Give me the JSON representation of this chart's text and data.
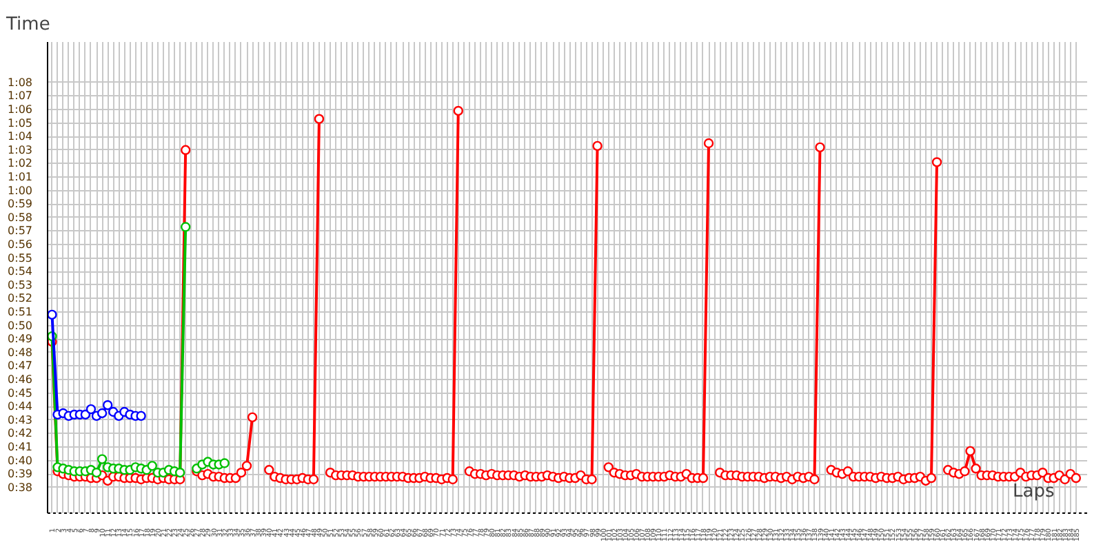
{
  "chart_data": {
    "type": "line",
    "xlabel": "Laps",
    "ylabel": "Time",
    "marker": "circle",
    "line_style": "solid",
    "grid": true,
    "categories": [
      "1",
      "2",
      "3",
      "4",
      "5",
      "6",
      "7",
      "8",
      "9",
      "10",
      "11",
      "12",
      "13",
      "14",
      "15",
      "16",
      "17",
      "18",
      "19",
      "20",
      "21",
      "22",
      "23",
      "24",
      "25",
      "26",
      "27",
      "28",
      "29",
      "30",
      "31",
      "32",
      "33",
      "34",
      "35",
      "36",
      "37",
      "38",
      "39",
      "40",
      "41",
      "42",
      "43",
      "44",
      "45",
      "46",
      "47",
      "48",
      "49",
      "50",
      "51",
      "52",
      "53",
      "54",
      "55",
      "56",
      "57",
      "58",
      "59",
      "60",
      "61",
      "62",
      "63",
      "64",
      "65",
      "66",
      "67",
      "68",
      "69",
      "70",
      "71",
      "72",
      "73",
      "74",
      "75",
      "76",
      "77",
      "78",
      "79",
      "80",
      "81",
      "82",
      "83",
      "84",
      "85",
      "86",
      "87",
      "88",
      "89",
      "90",
      "91",
      "92",
      "93",
      "94",
      "95",
      "96",
      "97",
      "98",
      "99",
      "100",
      "101",
      "102",
      "103",
      "104",
      "105",
      "106",
      "107",
      "108",
      "109",
      "110",
      "111",
      "112",
      "113",
      "114",
      "115",
      "116",
      "117",
      "118",
      "119",
      "120",
      "121",
      "122",
      "123",
      "124",
      "125",
      "126",
      "127",
      "128",
      "129",
      "130",
      "131",
      "132",
      "133",
      "134",
      "135",
      "136",
      "137",
      "138",
      "139",
      "140",
      "141",
      "142",
      "143",
      "144",
      "145",
      "146",
      "147",
      "148",
      "149",
      "150",
      "151",
      "152",
      "153",
      "154",
      "155",
      "156",
      "157",
      "158",
      "159",
      "160",
      "161",
      "162",
      "163",
      "164",
      "165",
      "166",
      "167",
      "168",
      "169",
      "170",
      "171",
      "172",
      "173",
      "174",
      "175",
      "176",
      "177",
      "178",
      "179",
      "180",
      "181",
      "182",
      "183",
      "184",
      "185"
    ],
    "ylim": [
      36.1,
      71
    ],
    "yticks": [
      {
        "value": 38,
        "label": "0:38"
      },
      {
        "value": 39,
        "label": "0:39"
      },
      {
        "value": 40,
        "label": "0:40"
      },
      {
        "value": 41,
        "label": "0:41"
      },
      {
        "value": 42,
        "label": "0:42"
      },
      {
        "value": 43,
        "label": "0:43"
      },
      {
        "value": 44,
        "label": "0:44"
      },
      {
        "value": 45,
        "label": "0:45"
      },
      {
        "value": 46,
        "label": "0:46"
      },
      {
        "value": 47,
        "label": "0:47"
      },
      {
        "value": 48,
        "label": "0:48"
      },
      {
        "value": 49,
        "label": "0:49"
      },
      {
        "value": 50,
        "label": "0:50"
      },
      {
        "value": 51,
        "label": "0:51"
      },
      {
        "value": 52,
        "label": "0:52"
      },
      {
        "value": 53,
        "label": "0:53"
      },
      {
        "value": 54,
        "label": "0:54"
      },
      {
        "value": 55,
        "label": "0:55"
      },
      {
        "value": 56,
        "label": "0:56"
      },
      {
        "value": 57,
        "label": "0:57"
      },
      {
        "value": 58,
        "label": "0:58"
      },
      {
        "value": 59,
        "label": "0:59"
      },
      {
        "value": 60,
        "label": "1:00"
      },
      {
        "value": 61,
        "label": "1:01"
      },
      {
        "value": 62,
        "label": "1:02"
      },
      {
        "value": 63,
        "label": "1:03"
      },
      {
        "value": 64,
        "label": "1:04"
      },
      {
        "value": 65,
        "label": "1:05"
      },
      {
        "value": 66,
        "label": "1:06"
      },
      {
        "value": 67,
        "label": "1:07"
      },
      {
        "value": 68,
        "label": "1:08"
      }
    ],
    "series": [
      {
        "color": "#ff0000",
        "values": [
          48.8,
          39.2,
          39.0,
          38.9,
          38.8,
          38.8,
          38.8,
          38.7,
          38.7,
          38.9,
          38.5,
          38.8,
          38.8,
          38.7,
          38.7,
          38.7,
          38.6,
          38.7,
          38.7,
          38.6,
          38.7,
          38.6,
          38.6,
          38.6,
          63.0,
          null,
          39.2,
          38.9,
          39.0,
          38.8,
          38.8,
          38.7,
          38.7,
          38.7,
          39.1,
          39.6,
          43.2,
          null,
          null,
          39.3,
          38.8,
          38.7,
          38.6,
          38.6,
          38.6,
          38.7,
          38.6,
          38.6,
          65.3,
          null,
          39.1,
          38.9,
          38.9,
          38.9,
          38.9,
          38.8,
          38.8,
          38.8,
          38.8,
          38.8,
          38.8,
          38.8,
          38.8,
          38.8,
          38.7,
          38.7,
          38.7,
          38.8,
          38.7,
          38.7,
          38.6,
          38.7,
          38.6,
          65.9,
          null,
          39.2,
          39.0,
          39.0,
          38.9,
          39.0,
          38.9,
          38.9,
          38.9,
          38.9,
          38.8,
          38.9,
          38.8,
          38.8,
          38.8,
          38.9,
          38.8,
          38.7,
          38.8,
          38.7,
          38.7,
          38.9,
          38.6,
          38.6,
          63.3,
          null,
          39.5,
          39.1,
          39.0,
          38.9,
          38.9,
          39.0,
          38.8,
          38.8,
          38.8,
          38.8,
          38.8,
          38.9,
          38.8,
          38.8,
          39.0,
          38.7,
          38.7,
          38.7,
          63.5,
          null,
          39.1,
          38.9,
          38.9,
          38.9,
          38.8,
          38.8,
          38.8,
          38.8,
          38.7,
          38.8,
          38.8,
          38.7,
          38.8,
          38.6,
          38.8,
          38.7,
          38.8,
          38.6,
          63.2,
          null,
          39.3,
          39.1,
          39.0,
          39.2,
          38.8,
          38.8,
          38.8,
          38.8,
          38.7,
          38.8,
          38.7,
          38.7,
          38.8,
          38.6,
          38.7,
          38.7,
          38.8,
          38.5,
          38.7,
          62.1,
          null,
          39.3,
          39.1,
          39.0,
          39.2,
          40.7,
          39.4,
          38.9,
          38.9,
          38.9,
          38.8,
          38.8,
          38.8,
          38.8,
          39.1,
          38.8,
          38.9,
          38.9,
          39.1,
          38.7,
          38.7,
          38.9,
          38.6,
          39.0,
          38.7
        ]
      },
      {
        "color": "#00c000",
        "values": [
          49.2,
          39.5,
          39.4,
          39.3,
          39.2,
          39.2,
          39.2,
          39.3,
          39.1,
          40.1,
          39.5,
          39.4,
          39.4,
          39.3,
          39.3,
          39.5,
          39.4,
          39.3,
          39.6,
          39.1,
          39.1,
          39.3,
          39.2,
          39.1,
          57.3,
          null,
          39.4,
          39.7,
          39.9,
          39.7,
          39.7,
          39.8,
          null,
          null,
          null,
          null,
          null,
          null,
          null,
          null,
          null,
          null,
          null,
          null,
          null,
          null,
          null,
          null,
          null,
          null,
          null,
          null,
          null,
          null,
          null,
          null,
          null,
          null,
          null,
          null,
          null,
          null,
          null,
          null,
          null,
          null,
          null,
          null,
          null,
          null,
          null,
          null,
          null,
          null,
          null,
          null,
          null,
          null,
          null,
          null,
          null,
          null,
          null,
          null,
          null,
          null,
          null,
          null,
          null,
          null,
          null,
          null,
          null,
          null,
          null,
          null,
          null,
          null,
          null,
          null,
          null,
          null,
          null,
          null,
          null,
          null,
          null,
          null,
          null,
          null,
          null,
          null,
          null,
          null,
          null,
          null,
          null,
          null,
          null,
          null,
          null,
          null,
          null,
          null,
          null,
          null,
          null,
          null,
          null,
          null,
          null,
          null,
          null,
          null,
          null,
          null,
          null,
          null,
          null,
          null,
          null,
          null,
          null,
          null,
          null,
          null,
          null,
          null,
          null,
          null,
          null,
          null,
          null,
          null,
          null,
          null,
          null,
          null,
          null,
          null,
          null,
          null,
          null,
          null,
          null,
          null,
          null,
          null,
          null,
          null,
          null,
          null,
          null,
          null,
          null,
          null,
          null,
          null,
          null,
          null,
          null,
          null,
          null,
          null,
          null
        ]
      },
      {
        "color": "#0000ff",
        "values": [
          50.8,
          43.4,
          43.5,
          43.3,
          43.4,
          43.4,
          43.4,
          43.8,
          43.3,
          43.5,
          44.1,
          43.6,
          43.3,
          43.6,
          43.4,
          43.3,
          43.3,
          null,
          null,
          null,
          null,
          null,
          null,
          null,
          null,
          null,
          null,
          null,
          null,
          null,
          null,
          null,
          null,
          null,
          null,
          null,
          null,
          null,
          null,
          null,
          null,
          null,
          null,
          null,
          null,
          null,
          null,
          null,
          null,
          null,
          null,
          null,
          null,
          null,
          null,
          null,
          null,
          null,
          null,
          null,
          null,
          null,
          null,
          null,
          null,
          null,
          null,
          null,
          null,
          null,
          null,
          null,
          null,
          null,
          null,
          null,
          null,
          null,
          null,
          null,
          null,
          null,
          null,
          null,
          null,
          null,
          null,
          null,
          null,
          null,
          null,
          null,
          null,
          null,
          null,
          null,
          null,
          null,
          null,
          null,
          null,
          null,
          null,
          null,
          null,
          null,
          null,
          null,
          null,
          null,
          null,
          null,
          null,
          null,
          null,
          null,
          null,
          null,
          null,
          null,
          null,
          null,
          null,
          null,
          null,
          null,
          null,
          null,
          null,
          null,
          null,
          null,
          null,
          null,
          null,
          null,
          null,
          null,
          null,
          null,
          null,
          null,
          null,
          null,
          null,
          null,
          null,
          null,
          null,
          null,
          null,
          null,
          null,
          null,
          null,
          null,
          null,
          null,
          null,
          null,
          null,
          null,
          null,
          null,
          null,
          null,
          null,
          null,
          null,
          null,
          null,
          null,
          null,
          null,
          null,
          null,
          null,
          null,
          null,
          null,
          null,
          null,
          null,
          null,
          null
        ]
      }
    ]
  }
}
